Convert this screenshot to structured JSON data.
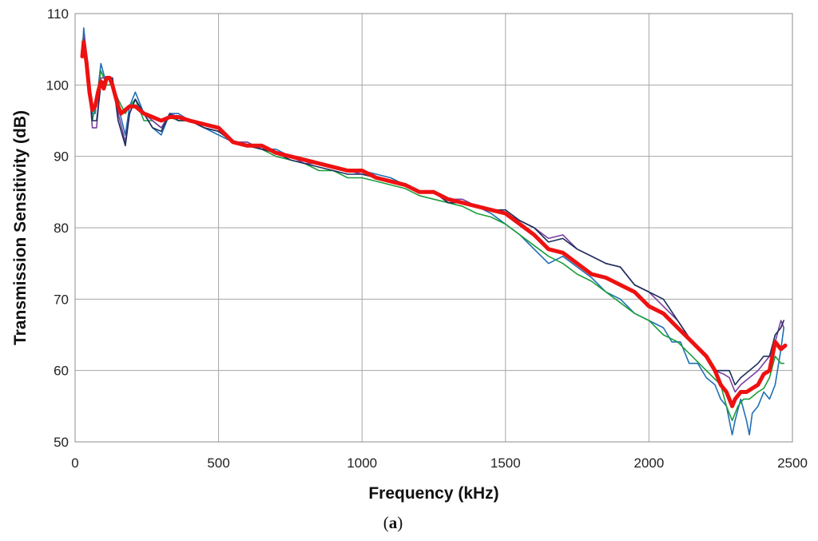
{
  "chart_data": {
    "type": "line",
    "title": "",
    "xlabel": "Frequency  (kHz)",
    "ylabel": "Transmission Sensitivity  (dB)",
    "caption": {
      "open": "(",
      "letter": "a",
      "close": ")"
    },
    "xlim": [
      0,
      2500
    ],
    "ylim": [
      50,
      110
    ],
    "xticks": [
      0,
      500,
      1000,
      1500,
      2000,
      2500
    ],
    "yticks": [
      50,
      60,
      70,
      80,
      90,
      100,
      110
    ],
    "grid": true,
    "legend": "none",
    "series": [
      {
        "color": "#1f6fb5",
        "width": 1.6,
        "x": [
          25,
          30,
          40,
          60,
          70,
          90,
          110,
          130,
          150,
          175,
          190,
          210,
          240,
          270,
          300,
          330,
          360,
          400,
          450,
          500,
          550,
          600,
          650,
          700,
          750,
          800,
          850,
          900,
          950,
          1000,
          1050,
          1100,
          1150,
          1200,
          1250,
          1300,
          1350,
          1400,
          1450,
          1500,
          1550,
          1600,
          1650,
          1700,
          1750,
          1800,
          1850,
          1900,
          1950,
          2000,
          2050,
          2080,
          2110,
          2140,
          2170,
          2200,
          2230,
          2250,
          2270,
          2290,
          2300,
          2320,
          2340,
          2350,
          2360,
          2380,
          2400,
          2420,
          2440,
          2460,
          2470
        ],
        "y": [
          104,
          108,
          104,
          96,
          96,
          103,
          100,
          100,
          97,
          93,
          97,
          99,
          96,
          94,
          93,
          96,
          96,
          95,
          94,
          93,
          92,
          92,
          91,
          91,
          90,
          89.5,
          89,
          88.5,
          88,
          88,
          87.5,
          87,
          86,
          85,
          85,
          84,
          83.5,
          83,
          82,
          80.5,
          79,
          77,
          75,
          76,
          74.5,
          73,
          71,
          70,
          68,
          67,
          66,
          64,
          64,
          61,
          61,
          59,
          58,
          56,
          55,
          51,
          53,
          56,
          53,
          51,
          54,
          55,
          57,
          56,
          58,
          63,
          66
        ]
      },
      {
        "color": "#1b9e3c",
        "width": 1.6,
        "x": [
          25,
          30,
          40,
          60,
          75,
          90,
          110,
          130,
          150,
          175,
          190,
          210,
          240,
          270,
          300,
          330,
          360,
          400,
          450,
          500,
          550,
          600,
          650,
          700,
          750,
          800,
          850,
          900,
          950,
          1000,
          1050,
          1100,
          1150,
          1200,
          1250,
          1300,
          1350,
          1400,
          1450,
          1500,
          1550,
          1600,
          1650,
          1700,
          1750,
          1800,
          1850,
          1900,
          1950,
          2000,
          2050,
          2100,
          2150,
          2200,
          2250,
          2270,
          2290,
          2310,
          2330,
          2350,
          2380,
          2400,
          2420,
          2440,
          2460,
          2470
        ],
        "y": [
          106,
          107,
          104,
          95,
          98,
          102,
          100,
          100,
          98,
          96,
          97,
          98,
          95,
          95,
          94,
          95.5,
          95,
          95,
          94,
          93.5,
          92,
          91.5,
          91,
          90,
          89.5,
          89,
          88,
          88,
          87,
          87,
          86.5,
          86,
          85.5,
          84.5,
          84,
          83.5,
          83,
          82,
          81.5,
          80.5,
          79,
          77.5,
          76,
          75,
          73.5,
          72.5,
          71,
          69.5,
          68,
          67,
          65,
          64,
          62,
          60,
          58,
          55,
          53,
          55,
          56,
          56,
          57,
          57.5,
          59,
          62,
          61,
          61
        ]
      },
      {
        "color": "#7b3fa0",
        "width": 1.6,
        "x": [
          25,
          30,
          40,
          60,
          75,
          90,
          110,
          130,
          150,
          175,
          190,
          210,
          240,
          270,
          300,
          330,
          360,
          400,
          450,
          500,
          550,
          600,
          650,
          700,
          750,
          800,
          850,
          900,
          950,
          1000,
          1050,
          1100,
          1150,
          1200,
          1250,
          1300,
          1350,
          1400,
          1450,
          1500,
          1550,
          1600,
          1650,
          1700,
          1750,
          1800,
          1850,
          1900,
          1950,
          2000,
          2050,
          2100,
          2150,
          2200,
          2230,
          2260,
          2280,
          2300,
          2320,
          2350,
          2380,
          2400,
          2420,
          2440,
          2460,
          2470
        ],
        "y": [
          105,
          107,
          104,
          94,
          94,
          101,
          101,
          101,
          96,
          92,
          96,
          98,
          96,
          95,
          94,
          96,
          95.5,
          95,
          94,
          93.5,
          92,
          92,
          91,
          90.5,
          90,
          89,
          89,
          88.5,
          88,
          87.5,
          87,
          86.5,
          86,
          85,
          85,
          84,
          84,
          83,
          82.5,
          82,
          81,
          80,
          78.5,
          79,
          77,
          76,
          75,
          74.5,
          72,
          71,
          69,
          67,
          64,
          62,
          60,
          59.5,
          59,
          57,
          58,
          59,
          60,
          61,
          62,
          64,
          67,
          66
        ]
      },
      {
        "color": "#1c2e5a",
        "width": 1.6,
        "x": [
          25,
          30,
          40,
          60,
          75,
          90,
          110,
          130,
          150,
          175,
          190,
          210,
          240,
          270,
          300,
          330,
          360,
          400,
          450,
          500,
          550,
          600,
          650,
          700,
          750,
          800,
          850,
          900,
          950,
          1000,
          1050,
          1100,
          1150,
          1200,
          1250,
          1300,
          1350,
          1400,
          1450,
          1500,
          1550,
          1600,
          1650,
          1700,
          1750,
          1800,
          1850,
          1900,
          1950,
          2000,
          2050,
          2100,
          2150,
          2200,
          2230,
          2260,
          2280,
          2300,
          2320,
          2350,
          2380,
          2400,
          2420,
          2440,
          2460,
          2470
        ],
        "y": [
          104,
          106,
          103,
          95,
          95,
          100,
          101,
          101,
          95,
          91.5,
          96,
          98,
          96,
          94,
          93.5,
          96,
          95,
          95,
          94,
          93.5,
          92,
          91.5,
          91,
          90.5,
          89.5,
          89,
          88.5,
          88,
          87.5,
          87.5,
          87,
          86.5,
          86,
          85,
          85,
          83.5,
          83.5,
          83,
          82.5,
          82.5,
          81,
          80,
          78,
          78.5,
          77,
          76,
          75,
          74.5,
          72,
          71,
          70,
          67,
          64,
          62,
          60,
          60,
          60,
          58,
          59,
          60,
          61,
          62,
          62,
          65,
          66,
          67
        ]
      },
      {
        "color": "#ee1111",
        "width": 5,
        "x": [
          25,
          30,
          40,
          50,
          60,
          70,
          80,
          90,
          100,
          110,
          120,
          130,
          140,
          150,
          160,
          175,
          190,
          210,
          240,
          270,
          300,
          330,
          360,
          400,
          450,
          500,
          550,
          600,
          650,
          700,
          750,
          800,
          850,
          900,
          950,
          1000,
          1050,
          1100,
          1150,
          1200,
          1250,
          1300,
          1350,
          1400,
          1450,
          1500,
          1550,
          1600,
          1650,
          1700,
          1750,
          1800,
          1850,
          1900,
          1950,
          2000,
          2050,
          2100,
          2150,
          2200,
          2230,
          2250,
          2270,
          2290,
          2300,
          2320,
          2340,
          2360,
          2380,
          2400,
          2420,
          2440,
          2460,
          2475
        ],
        "y": [
          104,
          106,
          103,
          99,
          96.5,
          97,
          99,
          100.5,
          99.5,
          101,
          101,
          100,
          98.5,
          97,
          96,
          96.5,
          97,
          97,
          96,
          95.5,
          95,
          95.5,
          95.5,
          95,
          94.5,
          94,
          92,
          91.5,
          91.5,
          90.5,
          90,
          89.5,
          89,
          88.5,
          88,
          88,
          87,
          86.5,
          86,
          85,
          85,
          84,
          83.5,
          83,
          82.5,
          82,
          80.5,
          79,
          77,
          76.5,
          75,
          73.5,
          73,
          72,
          71,
          69,
          68,
          66,
          64,
          62,
          60,
          58,
          57,
          55,
          56,
          57,
          57,
          57.5,
          58,
          59.5,
          60,
          64,
          63,
          63.5
        ]
      }
    ]
  }
}
